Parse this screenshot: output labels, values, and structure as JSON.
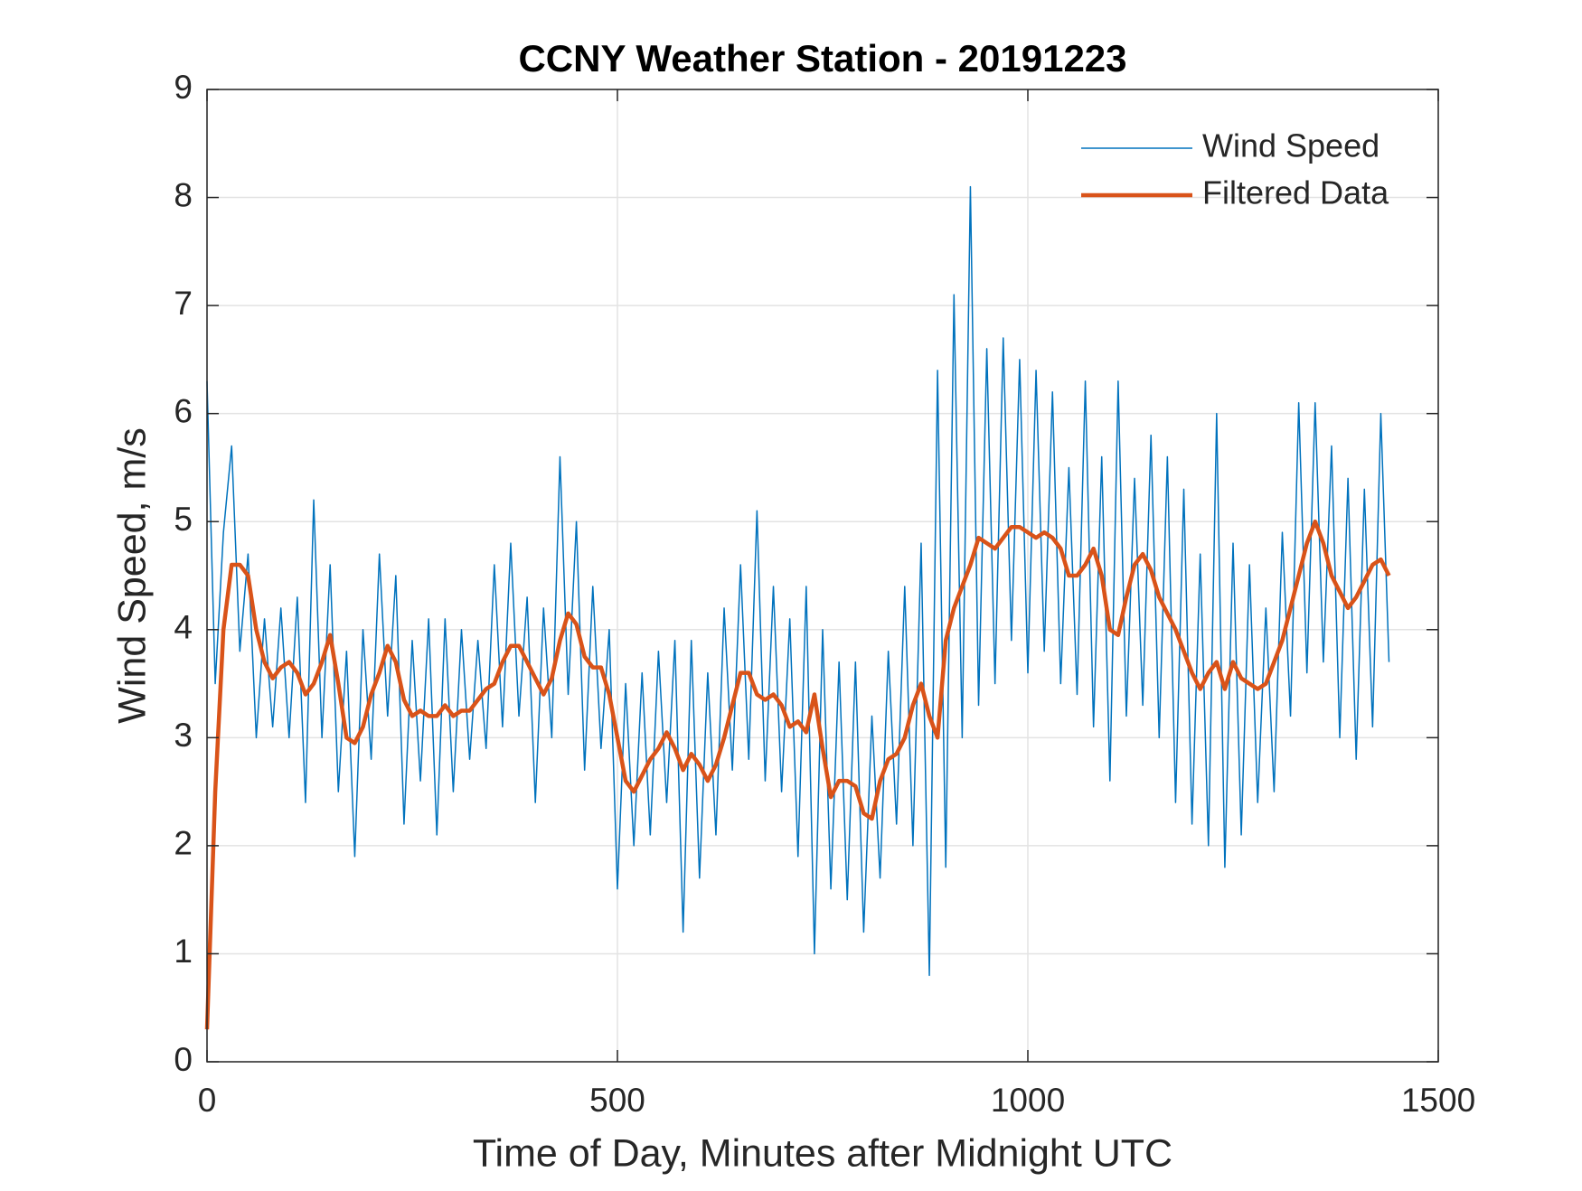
{
  "chart_data": {
    "type": "line",
    "title": "CCNY Weather Station - 20191223",
    "xlabel": "Time of Day, Minutes after Midnight UTC",
    "ylabel": "Wind Speed, m/s",
    "x": [
      0,
      10,
      20,
      30,
      40,
      50,
      60,
      70,
      80,
      90,
      100,
      110,
      120,
      130,
      140,
      150,
      160,
      170,
      180,
      190,
      200,
      210,
      220,
      230,
      240,
      250,
      260,
      270,
      280,
      290,
      300,
      310,
      320,
      330,
      340,
      350,
      360,
      370,
      380,
      390,
      400,
      410,
      420,
      430,
      440,
      450,
      460,
      470,
      480,
      490,
      500,
      510,
      520,
      530,
      540,
      550,
      560,
      570,
      580,
      590,
      600,
      610,
      620,
      630,
      640,
      650,
      660,
      670,
      680,
      690,
      700,
      710,
      720,
      730,
      740,
      750,
      760,
      770,
      780,
      790,
      800,
      810,
      820,
      830,
      840,
      850,
      860,
      870,
      880,
      890,
      900,
      910,
      920,
      930,
      940,
      950,
      960,
      970,
      980,
      990,
      1000,
      1010,
      1020,
      1030,
      1040,
      1050,
      1060,
      1070,
      1080,
      1090,
      1100,
      1110,
      1120,
      1130,
      1140,
      1150,
      1160,
      1170,
      1180,
      1190,
      1200,
      1210,
      1220,
      1230,
      1240,
      1250,
      1260,
      1270,
      1280,
      1290,
      1300,
      1310,
      1320,
      1330,
      1340,
      1350,
      1360,
      1370,
      1380,
      1390,
      1400,
      1410,
      1420,
      1430,
      1440
    ],
    "series": [
      {
        "name": "Wind Speed",
        "color": "#0072bd",
        "width": 1.5,
        "values": [
          6.3,
          3.5,
          4.9,
          5.7,
          3.8,
          4.7,
          3.0,
          4.1,
          3.1,
          4.2,
          3.0,
          4.3,
          2.4,
          5.2,
          3.0,
          4.6,
          2.5,
          3.8,
          1.9,
          4.0,
          2.8,
          4.7,
          3.2,
          4.5,
          2.2,
          3.9,
          2.6,
          4.1,
          2.1,
          4.1,
          2.5,
          4.0,
          2.8,
          3.9,
          2.9,
          4.6,
          3.1,
          4.8,
          3.2,
          4.3,
          2.4,
          4.2,
          3.0,
          5.6,
          3.4,
          5.0,
          2.7,
          4.4,
          2.9,
          4.0,
          1.6,
          3.5,
          2.0,
          3.6,
          2.1,
          3.8,
          2.4,
          3.9,
          1.2,
          3.9,
          1.7,
          3.6,
          2.1,
          4.2,
          2.7,
          4.6,
          2.8,
          5.1,
          2.6,
          4.4,
          2.5,
          4.1,
          1.9,
          4.4,
          1.0,
          4.0,
          1.6,
          3.7,
          1.5,
          3.7,
          1.2,
          3.2,
          1.7,
          3.8,
          2.2,
          4.4,
          2.0,
          4.8,
          0.8,
          6.4,
          1.8,
          7.1,
          3.0,
          8.1,
          3.3,
          6.6,
          3.5,
          6.7,
          3.9,
          6.5,
          3.6,
          6.4,
          3.8,
          6.2,
          3.5,
          5.5,
          3.4,
          6.3,
          3.1,
          5.6,
          2.6,
          6.3,
          3.2,
          5.4,
          3.3,
          5.8,
          3.0,
          5.6,
          2.4,
          5.3,
          2.2,
          4.7,
          2.0,
          6.0,
          1.8,
          4.8,
          2.1,
          4.6,
          2.4,
          4.2,
          2.5,
          4.9,
          3.2,
          6.1,
          3.6,
          6.1,
          3.7,
          5.7,
          3.0,
          5.4,
          2.8,
          5.3,
          3.1,
          6.0,
          3.7
        ]
      },
      {
        "name": "Filtered Data",
        "color": "#d95319",
        "width": 4.5,
        "values": [
          0.3,
          2.5,
          4.0,
          4.6,
          4.6,
          4.5,
          4.0,
          3.7,
          3.55,
          3.65,
          3.7,
          3.6,
          3.4,
          3.5,
          3.7,
          3.95,
          3.5,
          3.0,
          2.95,
          3.1,
          3.4,
          3.6,
          3.85,
          3.7,
          3.35,
          3.2,
          3.25,
          3.2,
          3.2,
          3.3,
          3.2,
          3.25,
          3.25,
          3.35,
          3.45,
          3.5,
          3.7,
          3.85,
          3.85,
          3.7,
          3.55,
          3.4,
          3.55,
          3.9,
          4.15,
          4.05,
          3.75,
          3.65,
          3.65,
          3.4,
          3.0,
          2.6,
          2.5,
          2.65,
          2.8,
          2.9,
          3.05,
          2.9,
          2.7,
          2.85,
          2.75,
          2.6,
          2.75,
          3.0,
          3.3,
          3.6,
          3.6,
          3.4,
          3.35,
          3.4,
          3.3,
          3.1,
          3.15,
          3.05,
          3.4,
          2.9,
          2.45,
          2.6,
          2.6,
          2.55,
          2.3,
          2.25,
          2.6,
          2.8,
          2.85,
          3.0,
          3.3,
          3.5,
          3.2,
          3.0,
          3.9,
          4.2,
          4.4,
          4.6,
          4.85,
          4.8,
          4.75,
          4.85,
          4.95,
          4.95,
          4.9,
          4.85,
          4.9,
          4.85,
          4.75,
          4.5,
          4.5,
          4.6,
          4.75,
          4.5,
          4.0,
          3.95,
          4.3,
          4.6,
          4.7,
          4.55,
          4.3,
          4.15,
          4.0,
          3.8,
          3.6,
          3.45,
          3.6,
          3.7,
          3.45,
          3.7,
          3.55,
          3.5,
          3.45,
          3.5,
          3.7,
          3.9,
          4.2,
          4.5,
          4.8,
          5.0,
          4.8,
          4.5,
          4.35,
          4.2,
          4.3,
          4.45,
          4.6,
          4.65,
          4.5
        ]
      }
    ],
    "xlim": [
      0,
      1500
    ],
    "xticks": [
      0,
      500,
      1000,
      1500
    ],
    "ylim": [
      0,
      9
    ],
    "yticks": [
      0,
      1,
      2,
      3,
      4,
      5,
      6,
      7,
      8,
      9
    ],
    "grid": true,
    "legend": "northeast"
  }
}
